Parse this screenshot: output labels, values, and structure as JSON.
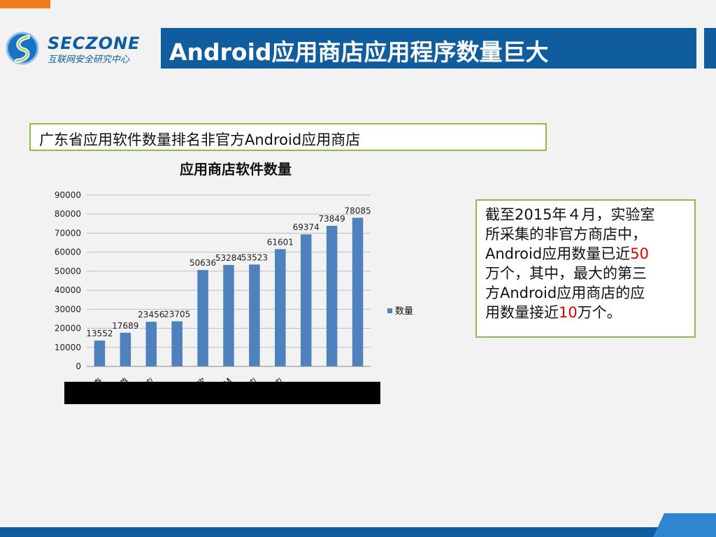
{
  "logo": {
    "brand": "SECZONE",
    "subtitle": "互联网安全研究中心"
  },
  "header": {
    "title": "Android应用商店应用程序数量巨大"
  },
  "subtitle_box": {
    "text": "广东省应用软件数量排名非官方Android应用商店"
  },
  "info": {
    "line1": "截至2015年４月，实验室",
    "line2": "所采集的非官方商店中，",
    "line3_pre": "Android应用数量已近",
    "line3_num": "50",
    "line4": "万个，其中，最大的第三",
    "line5": "方Android应用商店的应",
    "line6_pre": "用数量接近",
    "line6_num": "10",
    "line6_post": "万个。"
  },
  "colors": {
    "brand_blue": "#0f5c9e",
    "bar": "#4f81bd",
    "frame_green": "#8cbd4f",
    "highlight": "#e00000",
    "accent_orange": "#f07d1e"
  },
  "chart_data": {
    "type": "bar",
    "title": "应用商店软件数量",
    "legend": {
      "label": "数量",
      "position": "right"
    },
    "categories": [
      "奇",
      "金立游",
      "云度应",
      "",
      "oppo软",
      "M",
      "UC应",
      "华为应",
      "",
      "",
      ""
    ],
    "values": [
      13552,
      17689,
      23456,
      23705,
      50636,
      53284,
      53523,
      61601,
      69374,
      73849,
      78085
    ],
    "value_labels": [
      "13552",
      "17689",
      "23456",
      "23705",
      "50636",
      "53284",
      "53523",
      "61601",
      "69374",
      "73849",
      "78085"
    ],
    "ylim": [
      0,
      90000
    ],
    "yticks": [
      "0",
      "10000",
      "20000",
      "30000",
      "40000",
      "50000",
      "60000",
      "70000",
      "80000",
      "90000"
    ],
    "grid": true
  }
}
